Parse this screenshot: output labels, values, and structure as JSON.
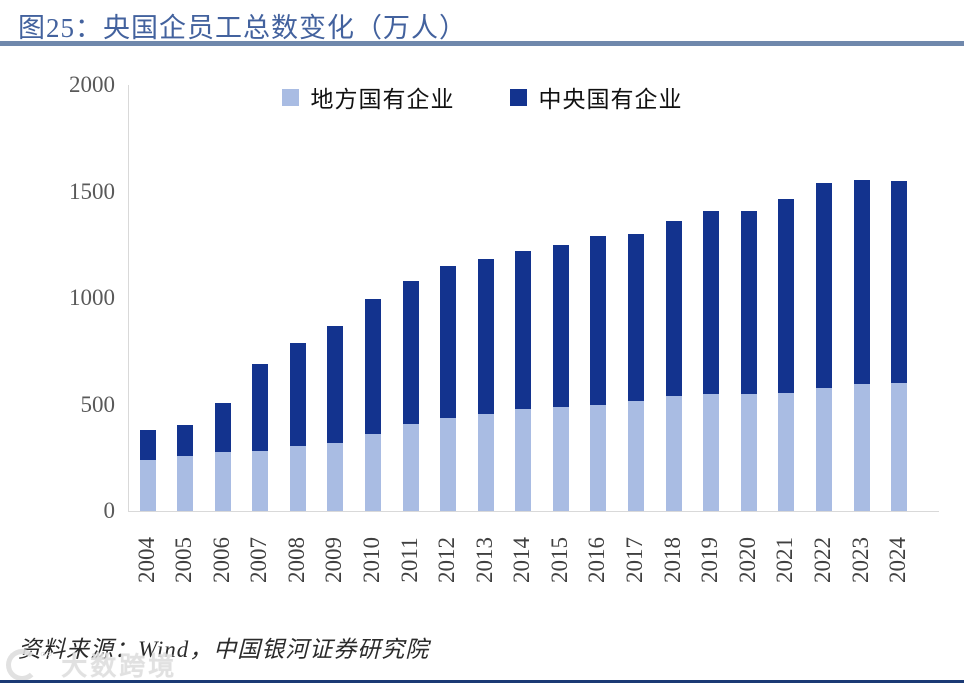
{
  "header": {
    "title": "图25：央国企员工总数变化（万人）"
  },
  "source": {
    "text": "资料来源：Wind，中国银河证券研究院"
  },
  "watermark": {
    "text": "大数跨境"
  },
  "colors": {
    "title_blue": "#43629e",
    "title_rule": "#7088ac",
    "local_soe": "#a9bce3",
    "central_soe": "#13338e",
    "axis_line": "#d9d9d9",
    "tick_text": "#595959",
    "bottom_line": "#1b3a75"
  },
  "chart_data": {
    "type": "bar",
    "stacked": true,
    "title": "央国企员工总数变化（万人）",
    "unit": "万人",
    "categories": [
      "2004",
      "2005",
      "2006",
      "2007",
      "2008",
      "2009",
      "2010",
      "2011",
      "2012",
      "2013",
      "2014",
      "2015",
      "2016",
      "2017",
      "2018",
      "2019",
      "2020",
      "2021",
      "2022",
      "2023",
      "2024"
    ],
    "series": [
      {
        "name": "地方国有企业",
        "color": "#a9bce3",
        "values": [
          240,
          256,
          275,
          280,
          303,
          317,
          362,
          409,
          435,
          457,
          478,
          487,
          498,
          516,
          539,
          550,
          549,
          555,
          576,
          594,
          601
        ]
      },
      {
        "name": "中央国有企业",
        "color": "#13338e",
        "values": [
          141,
          148,
          231,
          412,
          486,
          551,
          632,
          673,
          713,
          727,
          742,
          763,
          794,
          786,
          821,
          860,
          858,
          912,
          965,
          961,
          948
        ]
      }
    ],
    "totals": [
      381,
      404,
      506,
      692,
      789,
      868,
      994,
      1082,
      1148,
      1184,
      1220,
      1250,
      1292,
      1302,
      1360,
      1410,
      1407,
      1467,
      1541,
      1555,
      1549
    ],
    "ylim": [
      0,
      2000
    ],
    "yticks": [
      "0",
      "500",
      "1000",
      "1500",
      "2000"
    ],
    "xlabel": "",
    "ylabel": "",
    "grid": false,
    "legend_position": "top-center"
  }
}
